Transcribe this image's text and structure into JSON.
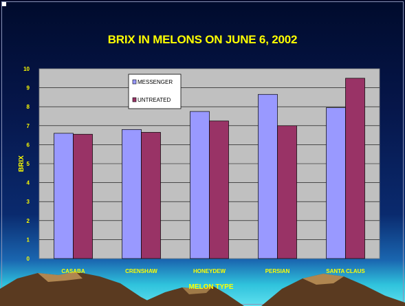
{
  "chart_data": {
    "type": "bar",
    "title": "BRIX IN MELONS ON JUNE 6, 2002",
    "xlabel": "MELON TYPE",
    "ylabel": "BRIX",
    "categories": [
      "CASABA",
      "CRENSHAW",
      "HONEYDEW",
      "PERSIAN",
      "SANTA CLAUS"
    ],
    "series": [
      {
        "name": "MESSENGER",
        "values": [
          6.6,
          6.8,
          7.75,
          8.65,
          7.95
        ],
        "color": "#9999ff"
      },
      {
        "name": "UNTREATED",
        "values": [
          6.55,
          6.65,
          7.25,
          7.0,
          9.5
        ],
        "color": "#993366"
      }
    ],
    "ylim": [
      0,
      10
    ],
    "yticks": [
      0,
      1,
      2,
      3,
      4,
      5,
      6,
      7,
      8,
      9,
      10
    ],
    "grid": true,
    "legend": "top-left",
    "plot_background": "#c0c0c0",
    "text_color": "#ffff00"
  }
}
